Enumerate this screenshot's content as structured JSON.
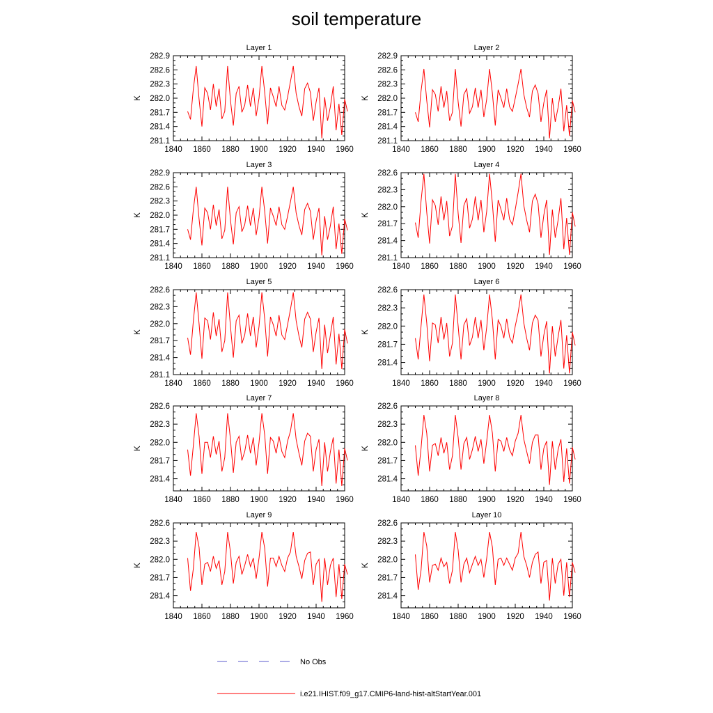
{
  "title": "soil temperature",
  "chart_data": {
    "type": "line",
    "title": "soil temperature",
    "xlim": [
      1840,
      1960
    ],
    "xticks": [
      1840,
      1860,
      1880,
      1900,
      1920,
      1940,
      1960
    ],
    "ylabel": "K",
    "legend_position": "bottom",
    "legend": [
      {
        "name": "No Obs",
        "color": "#5a5acd",
        "style": "dashed"
      },
      {
        "name": "i.e21.IHIST.f09_g17.CMIP6-land-hist-altStartYear.001",
        "color": "#ff0000",
        "style": "solid"
      }
    ],
    "x_start": 1850,
    "x_step": 2,
    "panels": [
      {
        "title": "Layer 1",
        "ylim": [
          281.1,
          282.9
        ],
        "yticks": [
          "281.1",
          "281.4",
          "281.7",
          "282.0",
          "282.3",
          "282.6",
          "282.9"
        ],
        "series": [
          {
            "name": "i.e21.IHIST.f09_g17.CMIP6-land-hist-altStartYear.001",
            "color": "#ff0000",
            "y": [
              281.72,
              281.55,
              282.2,
              282.68,
              281.98,
              281.4,
              282.22,
              282.1,
              281.75,
              282.3,
              281.82,
              282.2,
              281.56,
              281.72,
              282.68,
              281.95,
              281.42,
              282.1,
              282.25,
              281.7,
              281.85,
              282.28,
              281.82,
              282.22,
              281.62,
              282.0,
              282.68,
              282.12,
              281.45,
              282.22,
              282.03,
              281.82,
              282.25,
              281.85,
              281.75,
              282.02,
              282.35,
              282.68,
              282.1,
              281.82,
              281.62,
              282.2,
              282.32,
              282.12,
              281.52,
              281.92,
              282.22,
              281.15,
              282.02,
              281.52,
              281.82,
              282.25,
              281.32,
              281.88,
              281.22,
              281.98,
              281.72
            ]
          }
        ]
      },
      {
        "title": "Layer 2",
        "ylim": [
          281.1,
          282.9
        ],
        "yticks": [
          "281.1",
          "281.4",
          "281.7",
          "282.0",
          "282.3",
          "282.6",
          "282.9"
        ],
        "series": [
          {
            "name": "i.e21.IHIST.f09_g17.CMIP6-land-hist-altStartYear.001",
            "color": "#ff0000",
            "y": [
              281.7,
              281.5,
              282.15,
              282.62,
              281.95,
              281.38,
              282.18,
              282.08,
              281.72,
              282.25,
              281.8,
              282.15,
              281.52,
              281.7,
              282.62,
              281.92,
              281.4,
              282.08,
              282.2,
              281.68,
              281.82,
              282.22,
              281.8,
              282.18,
              281.6,
              281.98,
              282.62,
              282.1,
              281.42,
              282.18,
              282.0,
              281.8,
              282.2,
              281.82,
              281.72,
              282.0,
              282.3,
              282.62,
              282.08,
              281.8,
              281.6,
              282.15,
              282.28,
              282.1,
              281.5,
              281.9,
              282.18,
              281.15,
              282.0,
              281.5,
              281.8,
              282.2,
              281.3,
              281.85,
              281.2,
              281.95,
              281.7
            ]
          }
        ]
      },
      {
        "title": "Layer 3",
        "ylim": [
          281.1,
          282.9
        ],
        "yticks": [
          "281.1",
          "281.4",
          "281.7",
          "282.0",
          "282.3",
          "282.6",
          "282.9"
        ],
        "series": [
          {
            "name": "i.e21.IHIST.f09_g17.CMIP6-land-hist-altStartYear.001",
            "color": "#ff0000",
            "y": [
              281.7,
              281.48,
              282.12,
              282.6,
              281.92,
              281.36,
              282.15,
              282.05,
              281.7,
              282.22,
              281.78,
              282.12,
              281.5,
              281.68,
              282.6,
              281.9,
              281.38,
              282.05,
              282.18,
              281.65,
              281.8,
              282.2,
              281.78,
              282.15,
              281.58,
              281.95,
              282.6,
              282.08,
              281.4,
              282.15,
              281.98,
              281.78,
              282.18,
              281.8,
              281.7,
              281.98,
              282.28,
              282.6,
              282.05,
              281.78,
              281.58,
              282.12,
              282.25,
              282.08,
              281.48,
              281.88,
              282.15,
              281.15,
              281.98,
              281.48,
              281.78,
              282.18,
              281.28,
              281.82,
              281.18,
              281.92,
              281.68
            ]
          }
        ]
      },
      {
        "title": "Layer 4",
        "ylim": [
          281.1,
          282.6
        ],
        "yticks": [
          "281.1",
          "281.4",
          "281.7",
          "282.0",
          "282.3",
          "282.6"
        ],
        "series": [
          {
            "name": "i.e21.IHIST.f09_g17.CMIP6-land-hist-altStartYear.001",
            "color": "#ff0000",
            "y": [
              281.72,
              281.45,
              282.1,
              282.58,
              281.9,
              281.35,
              282.12,
              282.02,
              281.68,
              282.18,
              281.76,
              282.1,
              281.48,
              281.66,
              282.58,
              281.88,
              281.36,
              282.02,
              282.15,
              281.62,
              281.78,
              282.18,
              281.76,
              282.12,
              281.55,
              281.92,
              282.58,
              282.05,
              281.38,
              282.12,
              281.95,
              281.76,
              282.15,
              281.78,
              281.68,
              281.95,
              282.25,
              282.58,
              282.02,
              281.76,
              281.55,
              282.1,
              282.22,
              282.05,
              281.45,
              281.85,
              282.12,
              281.15,
              281.95,
              281.45,
              281.76,
              282.15,
              281.25,
              281.8,
              281.15,
              281.9,
              281.65
            ]
          }
        ]
      },
      {
        "title": "Layer 5",
        "ylim": [
          281.1,
          282.6
        ],
        "yticks": [
          "281.1",
          "281.4",
          "281.7",
          "282.0",
          "282.3",
          "282.6"
        ],
        "series": [
          {
            "name": "i.e21.IHIST.f09_g17.CMIP6-land-hist-altStartYear.001",
            "color": "#ff0000",
            "y": [
              281.75,
              281.45,
              282.05,
              282.55,
              282.0,
              281.38,
              282.1,
              282.05,
              281.72,
              282.2,
              281.78,
              282.08,
              281.5,
              281.7,
              282.55,
              281.95,
              281.4,
              282.05,
              282.15,
              281.65,
              281.8,
              282.18,
              281.78,
              282.12,
              281.58,
              281.95,
              282.55,
              282.08,
              281.42,
              282.12,
              281.98,
              281.78,
              282.15,
              281.8,
              281.72,
              281.98,
              282.25,
              282.55,
              282.05,
              281.78,
              281.58,
              282.08,
              282.2,
              282.08,
              281.5,
              281.85,
              282.1,
              281.2,
              281.98,
              281.48,
              281.8,
              282.12,
              281.28,
              281.82,
              281.2,
              281.9,
              281.65
            ]
          }
        ]
      },
      {
        "title": "Layer 6",
        "ylim": [
          281.2,
          282.6
        ],
        "yticks": [
          "281.4",
          "281.7",
          "282.0",
          "282.3",
          "282.6"
        ],
        "series": [
          {
            "name": "i.e21.IHIST.f09_g17.CMIP6-land-hist-altStartYear.001",
            "color": "#ff0000",
            "y": [
              281.8,
              281.45,
              282.0,
              282.52,
              282.05,
              281.42,
              282.05,
              282.02,
              281.72,
              282.15,
              281.78,
              282.05,
              281.5,
              281.72,
              282.52,
              282.0,
              281.45,
              282.02,
              282.12,
              281.68,
              281.82,
              282.15,
              281.8,
              282.1,
              281.6,
              281.98,
              282.52,
              282.1,
              281.45,
              282.1,
              282.0,
              281.8,
              282.12,
              281.82,
              281.72,
              282.0,
              282.22,
              282.52,
              282.05,
              281.8,
              281.6,
              282.05,
              282.18,
              282.1,
              281.5,
              281.85,
              282.08,
              281.22,
              282.0,
              281.5,
              281.82,
              282.1,
              281.3,
              281.85,
              281.22,
              281.9,
              281.68
            ]
          }
        ]
      },
      {
        "title": "Layer 7",
        "ylim": [
          281.2,
          282.6
        ],
        "yticks": [
          "281.4",
          "281.7",
          "282.0",
          "282.3",
          "282.6"
        ],
        "series": [
          {
            "name": "i.e21.IHIST.f09_g17.CMIP6-land-hist-altStartYear.001",
            "color": "#ff0000",
            "y": [
              281.88,
              281.45,
              281.95,
              282.48,
              282.1,
              281.48,
              282.0,
              282.0,
              281.75,
              282.1,
              281.8,
              282.02,
              281.52,
              281.75,
              282.48,
              282.05,
              281.5,
              282.0,
              282.1,
              281.7,
              281.85,
              282.12,
              281.82,
              282.08,
              281.62,
              282.0,
              282.48,
              282.12,
              281.48,
              282.08,
              282.02,
              281.82,
              282.1,
              281.85,
              281.75,
              282.02,
              282.18,
              282.48,
              282.05,
              281.82,
              281.62,
              282.02,
              282.15,
              282.1,
              281.52,
              281.88,
              282.05,
              281.28,
              282.0,
              281.52,
              281.85,
              282.08,
              281.32,
              281.88,
              281.28,
              281.9,
              281.7
            ]
          }
        ]
      },
      {
        "title": "Layer 8",
        "ylim": [
          281.2,
          282.6
        ],
        "yticks": [
          "281.4",
          "281.7",
          "282.0",
          "282.3",
          "282.6"
        ],
        "series": [
          {
            "name": "i.e21.IHIST.f09_g17.CMIP6-land-hist-altStartYear.001",
            "color": "#ff0000",
            "y": [
              281.95,
              281.45,
              281.9,
              282.45,
              282.15,
              281.52,
              281.95,
              281.98,
              281.78,
              282.08,
              281.82,
              282.0,
              281.55,
              281.78,
              282.45,
              282.08,
              281.55,
              281.98,
              282.08,
              281.72,
              281.88,
              282.1,
              281.85,
              282.05,
              281.65,
              282.02,
              282.45,
              282.15,
              281.52,
              282.05,
              282.02,
              281.85,
              282.08,
              281.88,
              281.78,
              282.02,
              282.15,
              282.45,
              282.05,
              281.85,
              281.65,
              282.0,
              282.12,
              282.12,
              281.55,
              281.9,
              282.02,
              281.3,
              282.02,
              281.55,
              281.88,
              282.05,
              281.35,
              281.9,
              281.32,
              281.92,
              281.72
            ]
          }
        ]
      },
      {
        "title": "Layer 9",
        "ylim": [
          281.2,
          282.6
        ],
        "yticks": [
          "281.4",
          "281.7",
          "282.0",
          "282.3",
          "282.6"
        ],
        "series": [
          {
            "name": "i.e21.IHIST.f09_g17.CMIP6-land-hist-altStartYear.001",
            "color": "#ff0000",
            "y": [
              282.02,
              281.48,
              281.85,
              282.45,
              282.2,
              281.58,
              281.92,
              281.95,
              281.8,
              282.05,
              281.85,
              281.98,
              281.58,
              281.8,
              282.45,
              282.12,
              281.6,
              281.95,
              282.05,
              281.75,
              281.9,
              282.08,
              281.88,
              282.02,
              281.68,
              282.02,
              282.45,
              282.18,
              281.55,
              282.02,
              282.02,
              281.88,
              282.05,
              281.9,
              281.8,
              282.02,
              282.12,
              282.45,
              282.05,
              281.88,
              281.68,
              281.98,
              282.1,
              282.12,
              281.58,
              281.92,
              282.0,
              281.3,
              282.02,
              281.58,
              281.9,
              282.02,
              281.38,
              281.92,
              281.35,
              281.92,
              281.75
            ]
          }
        ]
      },
      {
        "title": "Layer 10",
        "ylim": [
          281.2,
          282.6
        ],
        "yticks": [
          "281.4",
          "281.7",
          "282.0",
          "282.3",
          "282.6"
        ],
        "series": [
          {
            "name": "i.e21.IHIST.f09_g17.CMIP6-land-hist-altStartYear.001",
            "color": "#ff0000",
            "y": [
              282.08,
              281.5,
              281.82,
              282.45,
              282.22,
              281.62,
              281.9,
              281.92,
              281.82,
              282.02,
              281.88,
              281.95,
              281.6,
              281.82,
              282.45,
              282.15,
              281.62,
              281.92,
              282.02,
              281.78,
              281.92,
              282.05,
              281.9,
              282.0,
              281.7,
              282.02,
              282.45,
              282.2,
              281.58,
              282.0,
              282.02,
              281.9,
              282.02,
              281.92,
              281.82,
              282.02,
              282.1,
              282.45,
              282.05,
              281.9,
              281.7,
              281.95,
              282.08,
              282.12,
              281.6,
              281.95,
              281.98,
              281.32,
              282.02,
              281.6,
              281.92,
              282.0,
              281.4,
              281.95,
              281.38,
              281.95,
              281.78
            ]
          }
        ]
      }
    ]
  }
}
